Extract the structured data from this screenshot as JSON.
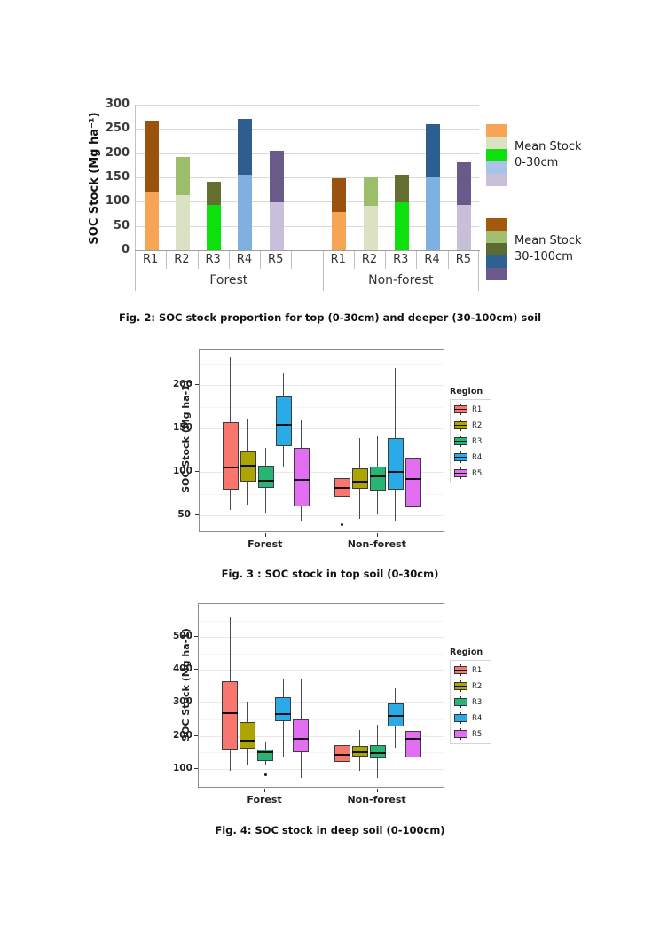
{
  "fig2": {
    "caption": "Fig. 2: SOC stock proportion for top (0-30cm) and deeper (30-100cm) soil",
    "chart_data": {
      "type": "bar",
      "stacked": true,
      "ylabel": "SOC Stock (Mg ha⁻¹)",
      "ylim": [
        0,
        300
      ],
      "yticks": [
        0,
        50,
        100,
        150,
        200,
        250,
        300
      ],
      "groups": [
        {
          "label": "Forest",
          "pattern": "solid",
          "bars": [
            {
              "label": "R1",
              "top": 120,
              "deep": 147,
              "total": 267
            },
            {
              "label": "R2",
              "top": 114,
              "deep": 78,
              "total": 192
            },
            {
              "label": "R3",
              "top": 93,
              "deep": 48,
              "total": 141
            },
            {
              "label": "R4",
              "top": 155,
              "deep": 116,
              "total": 271
            },
            {
              "label": "R5",
              "top": 99,
              "deep": 106,
              "total": 205
            }
          ]
        },
        {
          "label": "Non-forest",
          "pattern": "dotted",
          "bars": [
            {
              "label": "R1",
              "top": 78,
              "deep": 70,
              "total": 148
            },
            {
              "label": "R2",
              "top": 92,
              "deep": 60,
              "total": 152
            },
            {
              "label": "R3",
              "top": 98,
              "deep": 58,
              "total": 156
            },
            {
              "label": "R4",
              "top": 152,
              "deep": 108,
              "total": 260
            },
            {
              "label": "R5",
              "top": 93,
              "deep": 89,
              "total": 182
            }
          ]
        }
      ],
      "colors_top": {
        "R1": "#F7A454",
        "R2": "#DBE2C3",
        "R3": "#0EE00E",
        "R4": "#7FB0E2",
        "R5": "#C8BFDB"
      },
      "colors_deep": {
        "R1": "#9B520F",
        "R2": "#9CBD69",
        "R3": "#637031",
        "R4": "#2C5F8D",
        "R5": "#6A5A8A"
      },
      "legend": [
        {
          "line1": "Mean Stock",
          "line2": "0-30cm",
          "colors": [
            "#F7A454",
            "#DBE2C3",
            "#0EE00E",
            "#A9C4E8",
            "#C8BFDB"
          ]
        },
        {
          "line1": "Mean Stock",
          "line2": "30-100cm",
          "colors": [
            "#A3590E",
            "#A2BF72",
            "#5C6A34",
            "#2E6191",
            "#6B5A8B"
          ]
        }
      ]
    }
  },
  "fig3": {
    "caption": "Fig. 3 : SOC stock in top soil (0-30cm)",
    "chart_data": {
      "type": "boxplot",
      "ylabel": "SOC Stock (Mg ha-1)",
      "xcategories": [
        "Forest",
        "Non-forest"
      ],
      "ylim": [
        30,
        240
      ],
      "yticks": [
        50,
        100,
        150,
        200
      ],
      "legend_title": "Region",
      "series": [
        {
          "name": "R1",
          "color": "#F8766D"
        },
        {
          "name": "R2",
          "color": "#ACA400"
        },
        {
          "name": "R3",
          "color": "#27B575"
        },
        {
          "name": "R4",
          "color": "#2BAAE8"
        },
        {
          "name": "R5",
          "color": "#E36EF2"
        }
      ],
      "groups": [
        {
          "label": "Forest",
          "boxes": [
            {
              "region": "R1",
              "low": 57,
              "q1": 80,
              "median": 105,
              "q3": 157,
              "high": 233,
              "outliers": []
            },
            {
              "region": "R2",
              "low": 63,
              "q1": 89,
              "median": 107,
              "q3": 124,
              "high": 162,
              "outliers": []
            },
            {
              "region": "R3",
              "low": 53,
              "q1": 82,
              "median": 90,
              "q3": 107,
              "high": 128,
              "outliers": []
            },
            {
              "region": "R4",
              "low": 106,
              "q1": 130,
              "median": 154,
              "q3": 187,
              "high": 215,
              "outliers": []
            },
            {
              "region": "R5",
              "low": 44,
              "q1": 61,
              "median": 91,
              "q3": 128,
              "high": 159,
              "outliers": []
            }
          ]
        },
        {
          "label": "Non-forest",
          "boxes": [
            {
              "region": "R1",
              "low": 47,
              "q1": 72,
              "median": 82,
              "q3": 93,
              "high": 115,
              "outliers": [
                40
              ]
            },
            {
              "region": "R2",
              "low": 46,
              "q1": 81,
              "median": 89,
              "q3": 104,
              "high": 139,
              "outliers": []
            },
            {
              "region": "R3",
              "low": 51,
              "q1": 79,
              "median": 95,
              "q3": 106,
              "high": 142,
              "outliers": []
            },
            {
              "region": "R4",
              "low": 44,
              "q1": 80,
              "median": 100,
              "q3": 139,
              "high": 220,
              "outliers": []
            },
            {
              "region": "R5",
              "low": 41,
              "q1": 60,
              "median": 92,
              "q3": 117,
              "high": 163,
              "outliers": []
            }
          ]
        }
      ]
    }
  },
  "fig4": {
    "caption": "Fig. 4: SOC stock in deep soil (0-100cm)",
    "chart_data": {
      "type": "boxplot",
      "ylabel": "SOC Stock (Mg ha-1)",
      "xcategories": [
        "Forest",
        "Non-forest"
      ],
      "ylim": [
        40,
        600
      ],
      "yticks": [
        100,
        200,
        300,
        400,
        500
      ],
      "legend_title": "Region",
      "series": [
        {
          "name": "R1",
          "color": "#F8766D"
        },
        {
          "name": "R2",
          "color": "#ACA400"
        },
        {
          "name": "R3",
          "color": "#27B575"
        },
        {
          "name": "R4",
          "color": "#2BAAE8"
        },
        {
          "name": "R5",
          "color": "#E36EF2"
        }
      ],
      "groups": [
        {
          "label": "Forest",
          "boxes": [
            {
              "region": "R1",
              "low": 95,
              "q1": 158,
              "median": 268,
              "q3": 367,
              "high": 560,
              "outliers": []
            },
            {
              "region": "R2",
              "low": 113,
              "q1": 162,
              "median": 185,
              "q3": 242,
              "high": 305,
              "outliers": []
            },
            {
              "region": "R3",
              "low": 112,
              "q1": 124,
              "median": 150,
              "q3": 158,
              "high": 180,
              "outliers": [
                83
              ]
            },
            {
              "region": "R4",
              "low": 133,
              "q1": 245,
              "median": 267,
              "q3": 317,
              "high": 370,
              "outliers": []
            },
            {
              "region": "R5",
              "low": 73,
              "q1": 150,
              "median": 191,
              "q3": 249,
              "high": 375,
              "outliers": []
            }
          ]
        },
        {
          "label": "Non-forest",
          "boxes": [
            {
              "region": "R1",
              "low": 60,
              "q1": 120,
              "median": 143,
              "q3": 172,
              "high": 248,
              "outliers": []
            },
            {
              "region": "R2",
              "low": 95,
              "q1": 137,
              "median": 151,
              "q3": 169,
              "high": 218,
              "outliers": []
            },
            {
              "region": "R3",
              "low": 73,
              "q1": 131,
              "median": 148,
              "q3": 172,
              "high": 235,
              "outliers": []
            },
            {
              "region": "R4",
              "low": 165,
              "q1": 228,
              "median": 260,
              "q3": 299,
              "high": 345,
              "outliers": []
            },
            {
              "region": "R5",
              "low": 88,
              "q1": 135,
              "median": 192,
              "q3": 214,
              "high": 290,
              "outliers": []
            }
          ]
        }
      ]
    }
  }
}
